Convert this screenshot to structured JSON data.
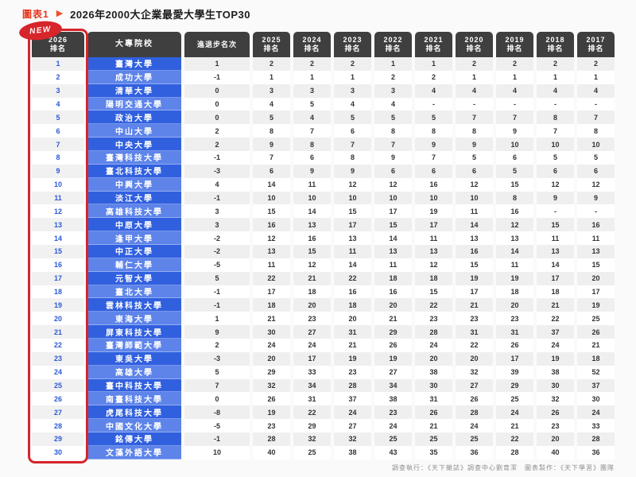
{
  "page": {
    "figure_label": "圖表1",
    "title": "2026年2000大企業最愛大學生TOP30",
    "badge": "NEW",
    "footer": "調查執行：《天下雜誌》調查中心劉育潔　圖表製作：《天下學習》團隊"
  },
  "colors": {
    "accent_red": "#d6252b",
    "title_red": "#e8341c",
    "header_gray": "#3f3f3f",
    "dark_blue": "#3160df",
    "light_blue": "#5e84ea",
    "rank_text_blue": "#2b59d8"
  },
  "table": {
    "headers": [
      [
        "2026",
        "排名"
      ],
      [
        "大專院校"
      ],
      [
        "進退步名次"
      ],
      [
        "2025",
        "排名"
      ],
      [
        "2024",
        "排名"
      ],
      [
        "2023",
        "排名"
      ],
      [
        "2022",
        "排名"
      ],
      [
        "2021",
        "排名"
      ],
      [
        "2020",
        "排名"
      ],
      [
        "2019",
        "排名"
      ],
      [
        "2018",
        "排名"
      ],
      [
        "2017",
        "排名"
      ]
    ],
    "header_keys": [
      "rank-2026",
      "school",
      "rank-change",
      "rank-2025",
      "rank-2024",
      "rank-2023",
      "rank-2022",
      "rank-2021",
      "rank-2020",
      "rank-2019",
      "rank-2018",
      "rank-2017"
    ]
  },
  "chart_data": {
    "type": "table",
    "title": "2026年2000大企業最愛大學生TOP30",
    "columns": [
      "2026排名",
      "大專院校",
      "進退步名次",
      "2025排名",
      "2024排名",
      "2023排名",
      "2022排名",
      "2021排名",
      "2020排名",
      "2019排名",
      "2018排名",
      "2017排名"
    ],
    "rows": [
      [
        "1",
        "臺灣大學",
        "1",
        "2",
        "2",
        "2",
        "1",
        "1",
        "2",
        "2",
        "2",
        "2"
      ],
      [
        "2",
        "成功大學",
        "-1",
        "1",
        "1",
        "1",
        "2",
        "2",
        "1",
        "1",
        "1",
        "1"
      ],
      [
        "3",
        "清華大學",
        "0",
        "3",
        "3",
        "3",
        "3",
        "4",
        "4",
        "4",
        "4",
        "4"
      ],
      [
        "4",
        "陽明交通大學",
        "0",
        "4",
        "5",
        "4",
        "4",
        "-",
        "-",
        "-",
        "-",
        "-"
      ],
      [
        "5",
        "政治大學",
        "0",
        "5",
        "4",
        "5",
        "5",
        "5",
        "7",
        "7",
        "8",
        "7"
      ],
      [
        "6",
        "中山大學",
        "2",
        "8",
        "7",
        "6",
        "8",
        "8",
        "8",
        "9",
        "7",
        "8"
      ],
      [
        "7",
        "中央大學",
        "2",
        "9",
        "8",
        "7",
        "7",
        "9",
        "9",
        "10",
        "10",
        "10"
      ],
      [
        "8",
        "臺灣科技大學",
        "-1",
        "7",
        "6",
        "8",
        "9",
        "7",
        "5",
        "6",
        "5",
        "5"
      ],
      [
        "9",
        "臺北科技大學",
        "-3",
        "6",
        "9",
        "9",
        "6",
        "6",
        "6",
        "5",
        "6",
        "6"
      ],
      [
        "10",
        "中興大學",
        "4",
        "14",
        "11",
        "12",
        "12",
        "16",
        "12",
        "15",
        "12",
        "12"
      ],
      [
        "11",
        "淡江大學",
        "-1",
        "10",
        "10",
        "10",
        "10",
        "10",
        "10",
        "8",
        "9",
        "9"
      ],
      [
        "12",
        "高雄科技大學",
        "3",
        "15",
        "14",
        "15",
        "17",
        "19",
        "11",
        "16",
        "-",
        "-"
      ],
      [
        "13",
        "中原大學",
        "3",
        "16",
        "13",
        "17",
        "15",
        "17",
        "14",
        "12",
        "15",
        "16"
      ],
      [
        "14",
        "逢甲大學",
        "-2",
        "12",
        "16",
        "13",
        "14",
        "11",
        "13",
        "13",
        "11",
        "11"
      ],
      [
        "15",
        "中正大學",
        "-2",
        "13",
        "15",
        "11",
        "13",
        "13",
        "16",
        "14",
        "13",
        "13"
      ],
      [
        "16",
        "輔仁大學",
        "-5",
        "11",
        "12",
        "14",
        "11",
        "12",
        "15",
        "11",
        "14",
        "15"
      ],
      [
        "17",
        "元智大學",
        "5",
        "22",
        "21",
        "22",
        "18",
        "18",
        "19",
        "19",
        "17",
        "20"
      ],
      [
        "18",
        "臺北大學",
        "-1",
        "17",
        "18",
        "16",
        "16",
        "15",
        "17",
        "18",
        "18",
        "17"
      ],
      [
        "19",
        "雲林科技大學",
        "-1",
        "18",
        "20",
        "18",
        "20",
        "22",
        "21",
        "20",
        "21",
        "19"
      ],
      [
        "20",
        "東海大學",
        "1",
        "21",
        "23",
        "20",
        "21",
        "23",
        "23",
        "23",
        "22",
        "25"
      ],
      [
        "21",
        "屏東科技大學",
        "9",
        "30",
        "27",
        "31",
        "29",
        "28",
        "31",
        "31",
        "37",
        "26"
      ],
      [
        "22",
        "臺灣師範大學",
        "2",
        "24",
        "24",
        "21",
        "26",
        "24",
        "22",
        "26",
        "24",
        "21"
      ],
      [
        "23",
        "東吳大學",
        "-3",
        "20",
        "17",
        "19",
        "19",
        "20",
        "20",
        "17",
        "19",
        "18"
      ],
      [
        "24",
        "高雄大學",
        "5",
        "29",
        "33",
        "23",
        "27",
        "38",
        "32",
        "39",
        "38",
        "52"
      ],
      [
        "25",
        "臺中科技大學",
        "7",
        "32",
        "34",
        "28",
        "34",
        "30",
        "27",
        "29",
        "30",
        "37"
      ],
      [
        "26",
        "南臺科技大學",
        "0",
        "26",
        "31",
        "37",
        "38",
        "31",
        "26",
        "25",
        "32",
        "30"
      ],
      [
        "27",
        "虎尾科技大學",
        "-8",
        "19",
        "22",
        "24",
        "23",
        "26",
        "28",
        "24",
        "26",
        "24"
      ],
      [
        "28",
        "中國文化大學",
        "-5",
        "23",
        "29",
        "27",
        "24",
        "21",
        "24",
        "21",
        "23",
        "33"
      ],
      [
        "29",
        "銘傳大學",
        "-1",
        "28",
        "32",
        "32",
        "25",
        "25",
        "25",
        "22",
        "20",
        "28"
      ],
      [
        "30",
        "文藻外語大學",
        "10",
        "40",
        "25",
        "38",
        "43",
        "35",
        "36",
        "28",
        "40",
        "36"
      ]
    ]
  }
}
